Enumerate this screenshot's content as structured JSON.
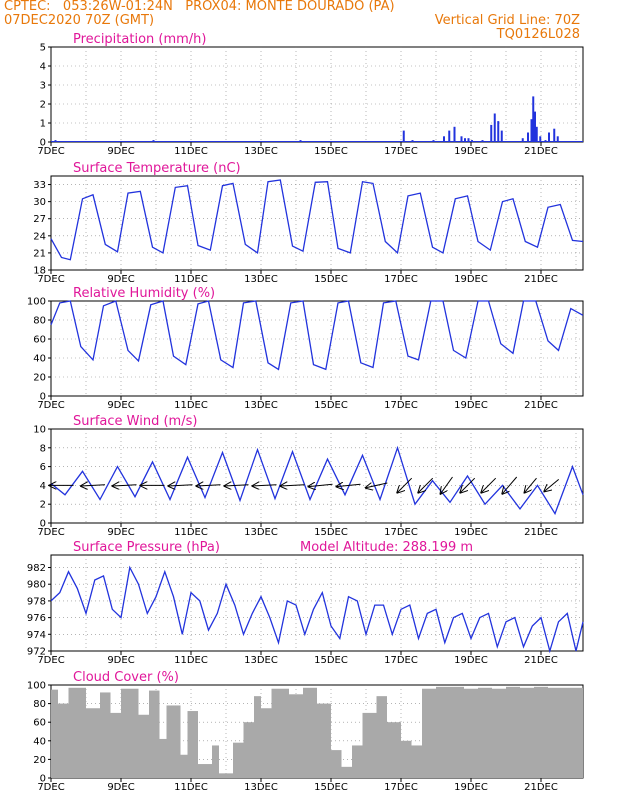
{
  "header": {
    "line1_left": "CPTEC:   053:26W-01:24N   PROX04: MONTE DOURADO (PA)",
    "line2_left": "07DEC2020 70Z (GMT)",
    "line2_right": "Vertical Grid Line: 70Z",
    "line3_right": "TQ0126L028"
  },
  "colors": {
    "header": "#e8780a",
    "title": "#e0179a",
    "series": "#2233dd",
    "cloud": "#a9a9a9",
    "grid": "#888888"
  },
  "chart_data": [
    {
      "type": "bar",
      "title": "Precipitation (mm/h)",
      "ylim": [
        0,
        5
      ],
      "yticks": [
        "0",
        "1",
        "2",
        "3",
        "4",
        "5"
      ],
      "x_dates": [
        "7DEC",
        "9DEC",
        "11DEC",
        "13DEC",
        "15DEC",
        "17DEC",
        "19DEC",
        "21DEC"
      ],
      "x_days": [
        0,
        2,
        4,
        6,
        8,
        10,
        12,
        14
      ],
      "series": [
        {
          "x": [
            0.05,
            0.1,
            3.0,
            7.2,
            10.1,
            12.2,
            13.9,
            14.1,
            14.25,
            14.4,
            22.0
          ],
          "values": [
            0,
            0,
            0,
            0,
            0,
            0,
            0,
            0,
            0,
            0,
            0
          ]
        }
      ],
      "bars_day": [
        0.1,
        2.9,
        7.1,
        10.05,
        10.3,
        10.9,
        11.2,
        11.35,
        11.5,
        11.7,
        11.8,
        11.9,
        12.0,
        12.3,
        12.55,
        12.65,
        12.75,
        12.85,
        13.45,
        13.6,
        13.7,
        13.75,
        13.8,
        13.85,
        13.95,
        14.1,
        14.2,
        14.35,
        14.45
      ],
      "bars_val": [
        0.1,
        0.1,
        0.1,
        0.6,
        0.1,
        0.1,
        0.3,
        0.6,
        0.8,
        0.3,
        0.2,
        0.2,
        0.1,
        0.1,
        0.9,
        1.5,
        1.1,
        0.6,
        0.2,
        0.5,
        1.2,
        2.4,
        1.6,
        0.8,
        0.3,
        0.1,
        0.5,
        0.7,
        0.3
      ]
    },
    {
      "type": "line",
      "title": "Surface Temperature (nC)",
      "ylim": [
        18,
        34.5
      ],
      "yticks": [
        "18",
        "21",
        "24",
        "27",
        "30",
        "33"
      ],
      "x_dates": [
        "7DEC",
        "9DEC",
        "11DEC",
        "13DEC",
        "15DEC",
        "17DEC",
        "19DEC",
        "21DEC"
      ],
      "x": [
        0,
        0.3,
        0.55,
        0.9,
        1.2,
        1.55,
        1.9,
        2.2,
        2.55,
        2.9,
        3.2,
        3.55,
        3.9,
        4.2,
        4.55,
        4.9,
        5.2,
        5.55,
        5.9,
        6.2,
        6.55,
        6.9,
        7.2,
        7.55,
        7.9,
        8.2,
        8.55,
        8.9,
        9.2,
        9.55,
        9.9,
        10.2,
        10.55,
        10.9,
        11.2,
        11.55,
        11.9,
        12.2,
        12.55,
        12.9,
        13.2,
        13.55,
        13.9,
        14.2,
        14.55,
        14.9,
        15.2
      ],
      "values": [
        23.5,
        20.2,
        19.8,
        30.5,
        31.2,
        22.5,
        21.2,
        31.5,
        31.8,
        22.0,
        21.0,
        32.5,
        32.8,
        22.3,
        21.5,
        32.8,
        33.2,
        22.5,
        21.0,
        33.5,
        33.8,
        22.2,
        21.3,
        33.4,
        33.5,
        21.8,
        21.0,
        33.5,
        33.2,
        23.0,
        21.0,
        31.0,
        31.5,
        22.0,
        21.0,
        30.5,
        31.0,
        23.0,
        21.5,
        30.0,
        30.5,
        23.0,
        22.0,
        29.0,
        29.5,
        23.2,
        23.0
      ]
    },
    {
      "type": "line",
      "title": "Relative Humidity (%)",
      "ylim": [
        0,
        100
      ],
      "yticks": [
        "0",
        "20",
        "40",
        "60",
        "80",
        "100"
      ],
      "x_dates": [
        "7DEC",
        "9DEC",
        "11DEC",
        "13DEC",
        "15DEC",
        "17DEC",
        "19DEC",
        "21DEC"
      ],
      "x": [
        0,
        0.25,
        0.55,
        0.85,
        1.2,
        1.5,
        1.85,
        2.2,
        2.5,
        2.85,
        3.2,
        3.5,
        3.85,
        4.2,
        4.5,
        4.85,
        5.2,
        5.5,
        5.85,
        6.2,
        6.5,
        6.85,
        7.2,
        7.5,
        7.85,
        8.2,
        8.5,
        8.85,
        9.2,
        9.5,
        9.85,
        10.2,
        10.5,
        10.85,
        11.2,
        11.5,
        11.85,
        12.2,
        12.5,
        12.85,
        13.2,
        13.5,
        13.85,
        14.2,
        14.5,
        14.85,
        15.2
      ],
      "values": [
        75,
        98,
        100,
        52,
        38,
        95,
        100,
        48,
        37,
        96,
        100,
        42,
        33,
        97,
        100,
        38,
        30,
        98,
        100,
        35,
        28,
        98,
        100,
        33,
        28,
        98,
        100,
        35,
        30,
        98,
        100,
        42,
        38,
        100,
        100,
        48,
        40,
        100,
        100,
        55,
        45,
        100,
        100,
        58,
        48,
        92,
        85
      ]
    },
    {
      "type": "line",
      "title": "Surface Wind (m/s)",
      "ylim": [
        0,
        10
      ],
      "yticks": [
        "0",
        "2",
        "4",
        "6",
        "8",
        "10"
      ],
      "x_dates": [
        "7DEC",
        "9DEC",
        "11DEC",
        "13DEC",
        "15DEC",
        "17DEC",
        "19DEC",
        "21DEC"
      ],
      "x": [
        0,
        0.4,
        0.9,
        1.4,
        1.9,
        2.4,
        2.9,
        3.4,
        3.9,
        4.4,
        4.9,
        5.4,
        5.9,
        6.4,
        6.9,
        7.4,
        7.9,
        8.4,
        8.9,
        9.4,
        9.9,
        10.4,
        10.9,
        11.4,
        11.9,
        12.4,
        12.9,
        13.4,
        13.9,
        14.4,
        14.9,
        15.2
      ],
      "values": [
        4.2,
        3.0,
        5.5,
        2.5,
        6.0,
        2.8,
        6.5,
        2.5,
        7.0,
        2.7,
        7.5,
        2.4,
        7.8,
        2.6,
        7.6,
        2.5,
        6.8,
        3.0,
        7.2,
        2.5,
        8.0,
        2.0,
        4.5,
        2.2,
        5.0,
        2.0,
        4.0,
        1.5,
        4.0,
        1.0,
        6.0,
        3.0
      ],
      "arrows_day": [
        0.3,
        1.2,
        2.1,
        2.9,
        3.7,
        4.5,
        5.3,
        6.1,
        6.9,
        7.7,
        8.5,
        9.3,
        10.1,
        10.7,
        11.3,
        11.9,
        12.5,
        13.1,
        13.7,
        14.3
      ],
      "arrows_dx": [
        -1.0,
        -1.0,
        -1.0,
        -1.0,
        -1.0,
        -1.0,
        -1.0,
        -1.0,
        -1.0,
        -1.0,
        -1.0,
        -0.9,
        -0.6,
        -0.6,
        -0.5,
        -0.6,
        -0.6,
        -0.6,
        -0.5,
        -0.6
      ],
      "arrows_dy": [
        0.0,
        0.05,
        0.05,
        0.0,
        0.05,
        0.05,
        0.05,
        0.05,
        0.05,
        0.1,
        0.1,
        0.2,
        0.6,
        0.6,
        0.7,
        0.6,
        0.6,
        0.7,
        0.6,
        0.5
      ]
    },
    {
      "type": "line",
      "title": "Surface Pressure (hPa)",
      "subtitle": "Model Altitude: 288.199 m",
      "ylim": [
        972,
        983.5
      ],
      "yticks": [
        "972",
        "974",
        "976",
        "978",
        "980",
        "982"
      ],
      "x_dates": [
        "7DEC",
        "9DEC",
        "11DEC",
        "13DEC",
        "15DEC",
        "17DEC",
        "19DEC",
        "21DEC"
      ],
      "x": [
        0,
        0.25,
        0.5,
        0.75,
        1.0,
        1.25,
        1.5,
        1.75,
        2.0,
        2.25,
        2.5,
        2.75,
        3.0,
        3.25,
        3.5,
        3.75,
        4.0,
        4.25,
        4.5,
        4.75,
        5.0,
        5.25,
        5.5,
        5.75,
        6.0,
        6.25,
        6.5,
        6.75,
        7.0,
        7.25,
        7.5,
        7.75,
        8.0,
        8.25,
        8.5,
        8.75,
        9.0,
        9.25,
        9.5,
        9.75,
        10.0,
        10.25,
        10.5,
        10.75,
        11.0,
        11.25,
        11.5,
        11.75,
        12.0,
        12.25,
        12.5,
        12.75,
        13.0,
        13.25,
        13.5,
        13.75,
        14.0,
        14.25,
        14.5,
        14.75,
        15.0,
        15.2
      ],
      "values": [
        978.0,
        979.0,
        981.5,
        979.5,
        976.5,
        980.5,
        981.0,
        977.0,
        976.0,
        982.0,
        980.0,
        976.5,
        978.5,
        981.5,
        978.5,
        974.0,
        979.0,
        978.0,
        974.5,
        976.5,
        980.0,
        977.5,
        974.0,
        976.5,
        978.5,
        976.0,
        973.0,
        978.0,
        977.5,
        974.0,
        977.0,
        979.0,
        975.0,
        973.5,
        978.5,
        978.0,
        974.0,
        977.5,
        977.5,
        974.0,
        977.0,
        977.5,
        973.5,
        976.5,
        977.0,
        973.0,
        976.0,
        976.5,
        973.5,
        976.0,
        976.5,
        972.5,
        975.5,
        976.0,
        972.5,
        975.0,
        976.0,
        972.0,
        975.5,
        976.5,
        972.0,
        975.5
      ]
    },
    {
      "type": "bar",
      "title": "Cloud Cover (%)",
      "ylim": [
        0,
        100
      ],
      "yticks": [
        "0",
        "20",
        "40",
        "60",
        "80",
        "100"
      ],
      "x_dates": [
        "7DEC",
        "9DEC",
        "11DEC",
        "13DEC",
        "15DEC",
        "17DEC",
        "19DEC",
        "21DEC"
      ],
      "x_days": [
        0,
        2,
        4,
        6,
        8,
        10,
        12,
        14
      ],
      "segments_start": [
        0.0,
        0.2,
        0.5,
        1.0,
        1.4,
        1.7,
        2.0,
        2.5,
        2.8,
        3.1,
        3.3,
        3.7,
        3.9,
        4.2,
        4.6,
        4.8,
        5.2,
        5.5,
        5.8,
        6.0,
        6.3,
        6.8,
        7.2,
        7.6,
        8.0,
        8.3,
        8.6,
        8.9,
        9.3,
        9.6,
        10.0,
        10.3,
        10.6,
        11.0,
        11.4,
        11.8,
        12.2,
        12.6,
        13.0,
        13.4,
        13.8,
        14.2,
        14.6
      ],
      "segments_val": [
        95,
        80,
        97,
        75,
        92,
        70,
        96,
        68,
        94,
        42,
        78,
        25,
        72,
        15,
        35,
        5,
        38,
        60,
        88,
        75,
        96,
        90,
        97,
        80,
        30,
        12,
        35,
        70,
        88,
        60,
        40,
        35,
        96,
        98,
        98,
        96,
        97,
        96,
        98,
        97,
        98,
        97,
        97
      ]
    }
  ]
}
